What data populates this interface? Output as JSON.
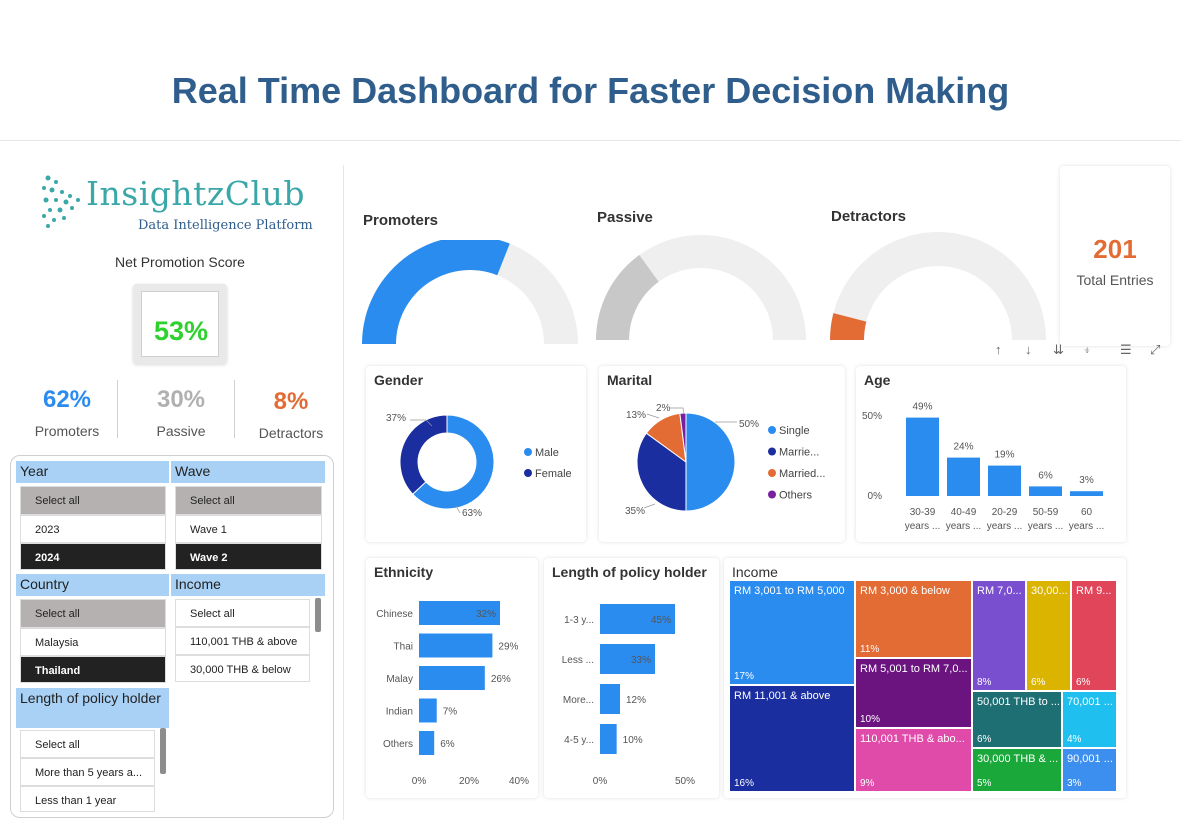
{
  "page_title": "Real Time Dashboard for Faster Decision Making",
  "logo": {
    "name": "InsightzClub",
    "tagline": "Data Intelligence Platform"
  },
  "nps": {
    "label": "Net Promotion Score",
    "value": "53%"
  },
  "kpis": [
    {
      "value": "62%",
      "label": "Promoters",
      "color": "#2b8cf0"
    },
    {
      "value": "30%",
      "label": "Passive",
      "color": "#b0b0b0"
    },
    {
      "value": "8%",
      "label": "Detractors",
      "color": "#e26c34"
    }
  ],
  "slicers": {
    "year": {
      "title": "Year",
      "items": [
        "Select all",
        "2023",
        "2024"
      ]
    },
    "wave": {
      "title": "Wave",
      "items": [
        "Select all",
        "Wave 1",
        "Wave 2"
      ]
    },
    "country": {
      "title": "Country",
      "items": [
        "Select all",
        "Malaysia",
        "Thailand"
      ]
    },
    "income": {
      "title": "Income",
      "items": [
        "Select all",
        "110,001 THB & above",
        "30,000 THB & below"
      ]
    },
    "length": {
      "title": "Length of policy holder",
      "items": [
        "Select all",
        "More than 5 years a...",
        "Less than 1 year"
      ]
    }
  },
  "gauges": [
    {
      "title": "Promoters",
      "fraction": 0.62,
      "color": "#2b8cf0"
    },
    {
      "title": "Passive",
      "fraction": 0.3,
      "color": "#c8c8c8"
    },
    {
      "title": "Detractors",
      "fraction": 0.08,
      "color": "#e26c34"
    }
  ],
  "total": {
    "value": "201",
    "label": "Total Entries"
  },
  "toolbar": {
    "up": "↑",
    "down": "↓",
    "expand_all": "⇊",
    "drill": "⍖",
    "filter": "☰",
    "focus": "⤢"
  },
  "colors": {
    "blue": "#2b8cf0",
    "navy": "#1a2ea0",
    "orange": "#e26c34",
    "purple": "#7a1fa2"
  },
  "chart_data": [
    {
      "type": "pie",
      "title": "Gender",
      "donut": true,
      "slices": [
        {
          "name": "Male",
          "value": 63,
          "label": "63%",
          "color": "#2b8cf0"
        },
        {
          "name": "Female",
          "value": 37,
          "label": "37%",
          "color": "#1a2ea0"
        }
      ]
    },
    {
      "type": "pie",
      "title": "Marital",
      "slices": [
        {
          "name": "Single",
          "value": 50,
          "label": "50%",
          "color": "#2b8cf0"
        },
        {
          "name": "Marrie...",
          "value": 35,
          "label": "35%",
          "color": "#1a2ea0"
        },
        {
          "name": "Married...",
          "value": 13,
          "label": "13%",
          "color": "#e26c34"
        },
        {
          "name": "Others",
          "value": 2,
          "label": "2%",
          "color": "#7a1fa2"
        }
      ]
    },
    {
      "type": "bar",
      "title": "Age",
      "categories": [
        "30-39 years ...",
        "40-49 years ...",
        "20-29 years ...",
        "50-59 years ...",
        "60 years ..."
      ],
      "category_lines": [
        [
          "30-39",
          "years ..."
        ],
        [
          "40-49",
          "years ..."
        ],
        [
          "20-29",
          "years ..."
        ],
        [
          "50-59",
          "years ..."
        ],
        [
          "60",
          "years ..."
        ]
      ],
      "values": [
        49,
        24,
        19,
        6,
        3
      ],
      "labels": [
        "49%",
        "24%",
        "19%",
        "6%",
        "3%"
      ],
      "yticks": [
        "0%",
        "50%"
      ],
      "ylim": [
        0,
        50
      ]
    },
    {
      "type": "bar",
      "orientation": "horizontal",
      "title": "Ethnicity",
      "categories": [
        "Chinese",
        "Thai",
        "Malay",
        "Indian",
        "Others"
      ],
      "values": [
        32,
        29,
        26,
        7,
        6
      ],
      "labels": [
        "32%",
        "29%",
        "26%",
        "7%",
        "6%"
      ],
      "xticks": [
        "0%",
        "20%",
        "40%"
      ],
      "xlim": [
        0,
        40
      ]
    },
    {
      "type": "bar",
      "orientation": "horizontal",
      "title": "Length of policy holder",
      "categories": [
        "1-3 y...",
        "Less ...",
        "More...",
        "4-5 y..."
      ],
      "values": [
        45,
        33,
        12,
        10
      ],
      "labels": [
        "45%",
        "33%",
        "12%",
        "10%"
      ],
      "xticks": [
        "0%",
        "50%"
      ],
      "xlim": [
        0,
        50
      ]
    },
    {
      "type": "treemap",
      "title": "Income",
      "items": [
        {
          "name": "RM 3,001 to RM 5,000",
          "value": 17,
          "label": "17%",
          "color": "#2b8cf0"
        },
        {
          "name": "RM 11,001 & above",
          "value": 16,
          "label": "16%",
          "color": "#1a2ea0"
        },
        {
          "name": "RM 3,000 & below",
          "value": 11,
          "label": "11%",
          "color": "#e26c34"
        },
        {
          "name": "RM 5,001 to RM 7,0...",
          "value": 10,
          "label": "10%",
          "color": "#6b1480"
        },
        {
          "name": "110,001 THB & abo...",
          "value": 9,
          "label": "9%",
          "color": "#e04aa8"
        },
        {
          "name": "RM 7,0...",
          "value": 8,
          "label": "8%",
          "color": "#7a4fcf"
        },
        {
          "name": "30,00...",
          "value": 6,
          "label": "6%",
          "color": "#dbb400"
        },
        {
          "name": "RM 9...",
          "value": 6,
          "label": "6%",
          "color": "#e0455a"
        },
        {
          "name": "50,001 THB to ...",
          "value": 6,
          "label": "6%",
          "color": "#1e6f74"
        },
        {
          "name": "30,000 THB & ...",
          "value": 5,
          "label": "5%",
          "color": "#1aa83a"
        },
        {
          "name": "70,001 ...",
          "value": 4,
          "label": "4%",
          "color": "#1fc0f0"
        },
        {
          "name": "90,001 ...",
          "value": 3,
          "label": "3%",
          "color": "#3d8fef"
        }
      ]
    }
  ]
}
